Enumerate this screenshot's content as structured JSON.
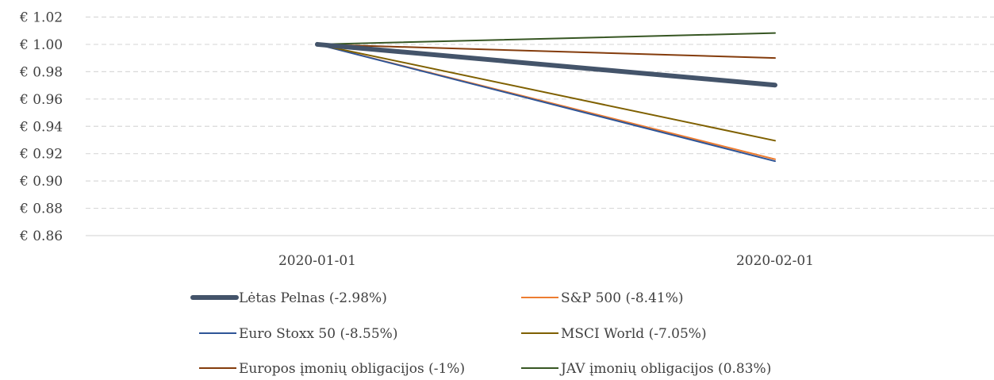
{
  "chart_data": {
    "type": "line",
    "x": [
      "2020-01-01",
      "2020-02-01"
    ],
    "ylim": [
      0.86,
      1.02
    ],
    "yticks": [
      "€ 1.02",
      "€ 1.00",
      "€ 0.98",
      "€ 0.96",
      "€ 0.94",
      "€ 0.92",
      "€ 0.90",
      "€ 0.88",
      "€ 0.86"
    ],
    "ytick_values": [
      1.02,
      1.0,
      0.98,
      0.96,
      0.94,
      0.92,
      0.9,
      0.88,
      0.86
    ],
    "grid": "horizontal-dashed",
    "legend_position": "bottom",
    "series": [
      {
        "name": "Lėtas Pelnas (-2.98%)",
        "values": [
          1.0,
          0.9702
        ],
        "color": "#44546A",
        "emphasis": "bold"
      },
      {
        "name": "S&P 500 (-8.41%)",
        "values": [
          1.0,
          0.9159
        ],
        "color": "#ED7D31"
      },
      {
        "name": "Euro Stoxx 50 (-8.55%)",
        "values": [
          1.0,
          0.9145
        ],
        "color": "#2F5597"
      },
      {
        "name": "MSCI World (-7.05%)",
        "values": [
          1.0,
          0.9295
        ],
        "color": "#7F6000"
      },
      {
        "name": "Europos įmonių obligacijos (-1%)",
        "values": [
          1.0,
          0.99
        ],
        "color": "#843C0C"
      },
      {
        "name": "JAV įmonių obligacijos (0.83%)",
        "values": [
          1.0,
          1.0083
        ],
        "color": "#375623"
      }
    ]
  }
}
